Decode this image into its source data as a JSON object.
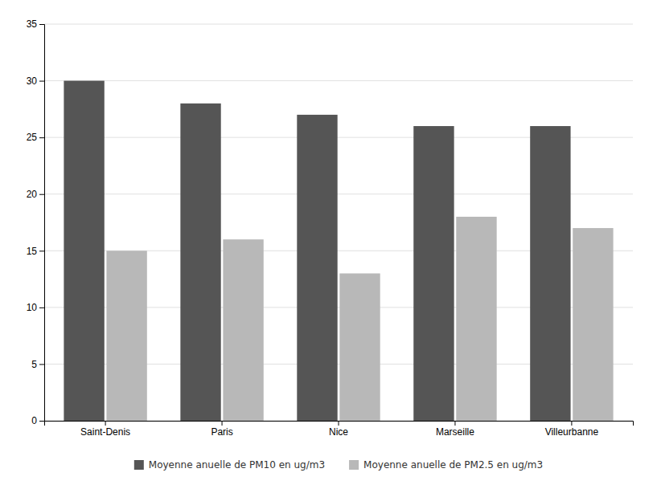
{
  "chart_data": {
    "type": "bar",
    "categories": [
      "Saint-Denis",
      "Paris",
      "Nice",
      "Marseille",
      "Villeurbanne"
    ],
    "series": [
      {
        "name": "Moyenne anuelle de PM10 en ug/m3",
        "color": "#555555",
        "values": [
          30,
          28,
          27,
          26,
          26
        ]
      },
      {
        "name": "Moyenne anuelle de PM2.5 en ug/m3",
        "color": "#b8b8b8",
        "values": [
          15,
          16,
          13,
          18,
          17
        ]
      }
    ],
    "ylim": [
      0,
      35
    ],
    "yticks": [
      0,
      5,
      10,
      15,
      20,
      25,
      30,
      35
    ],
    "grid": true,
    "legend": "bottom"
  }
}
